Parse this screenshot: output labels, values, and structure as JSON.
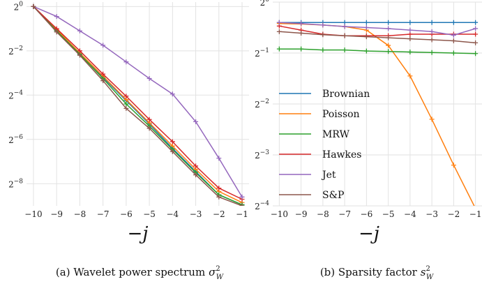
{
  "chart_data": [
    {
      "type": "line",
      "caption_prefix": "(a) Wavelet power spectrum",
      "caption_sym": "σ",
      "caption_sup": "2",
      "caption_sub": "W",
      "xlabel": "−j",
      "y_scale": "log2",
      "ylim_exp": [
        -9,
        0.2
      ],
      "y_tick_exps": [
        0,
        -2,
        -4,
        -6,
        -8
      ],
      "y_tick_base": "2",
      "y_tick_exp_labels": [
        "0",
        "−2",
        "−4",
        "−6",
        "−8"
      ],
      "x": [
        -10,
        -9,
        -8,
        -7,
        -6,
        -5,
        -4,
        -3,
        -2,
        -1
      ],
      "x_tick_labels": [
        "−10",
        "−9",
        "−8",
        "−7",
        "−6",
        "−5",
        "−4",
        "−3",
        "−2",
        "−1"
      ],
      "grid": true,
      "series": [
        {
          "name": "Brownian",
          "color": "#1f77b4",
          "values_exp": [
            0,
            -1.1,
            -2.15,
            -3.2,
            -4.25,
            -5.3,
            -6.4,
            -7.45,
            -8.5,
            -8.95
          ]
        },
        {
          "name": "Poisson",
          "color": "#ff7f0e",
          "values_exp": [
            0,
            -1.05,
            -2.1,
            -3.15,
            -4.2,
            -5.25,
            -6.3,
            -7.35,
            -8.35,
            -8.85
          ]
        },
        {
          "name": "MRW",
          "color": "#2ca02c",
          "values_exp": [
            0,
            -1.1,
            -2.15,
            -3.25,
            -4.4,
            -5.4,
            -6.45,
            -7.5,
            -8.5,
            -8.95
          ]
        },
        {
          "name": "Hawkes",
          "color": "#d62728",
          "values_exp": [
            0,
            -1.0,
            -2.0,
            -3.05,
            -4.05,
            -5.1,
            -6.1,
            -7.2,
            -8.2,
            -8.7
          ]
        },
        {
          "name": "Jet",
          "color": "#9467bd",
          "values_exp": [
            0,
            -0.45,
            -1.1,
            -1.75,
            -2.5,
            -3.25,
            -3.95,
            -5.2,
            -6.85,
            -8.6
          ]
        },
        {
          "name": "S&P",
          "color": "#8c564b",
          "values_exp": [
            0,
            -1.15,
            -2.2,
            -3.35,
            -4.6,
            -5.5,
            -6.55,
            -7.6,
            -8.6,
            -9.0
          ]
        }
      ]
    },
    {
      "type": "line",
      "caption_prefix": "(b) Sparsity factor",
      "caption_sym": "s",
      "caption_sup": "2",
      "caption_sub": "W",
      "xlabel": "−j",
      "y_scale": "log2",
      "ylim_exp": [
        -4,
        0
      ],
      "y_tick_exps": [
        0,
        -1,
        -2,
        -3,
        -4
      ],
      "y_tick_base": "2",
      "y_tick_exp_labels": [
        "0",
        "−1",
        "−2",
        "−3",
        "−4"
      ],
      "x": [
        -10,
        -9,
        -8,
        -7,
        -6,
        -5,
        -4,
        -3,
        -2,
        -1
      ],
      "x_tick_labels": [
        "−10",
        "−9",
        "−8",
        "−7",
        "−6",
        "−5",
        "−4",
        "−3",
        "−2",
        "−1"
      ],
      "grid": true,
      "legend_position": "center-left",
      "series": [
        {
          "name": "Brownian",
          "color": "#1f77b4",
          "values_exp": [
            -0.4,
            -0.4,
            -0.4,
            -0.4,
            -0.4,
            -0.4,
            -0.4,
            -0.4,
            -0.4,
            -0.4
          ]
        },
        {
          "name": "Poisson",
          "color": "#ff7f0e",
          "values_exp": [
            -0.42,
            -0.43,
            -0.45,
            -0.48,
            -0.55,
            -0.85,
            -1.45,
            -2.3,
            -3.2,
            -4.05
          ]
        },
        {
          "name": "MRW",
          "color": "#2ca02c",
          "values_exp": [
            -0.92,
            -0.92,
            -0.94,
            -0.94,
            -0.96,
            -0.97,
            -0.98,
            -0.99,
            -1.0,
            -1.01
          ]
        },
        {
          "name": "Hawkes",
          "color": "#d62728",
          "values_exp": [
            -0.47,
            -0.55,
            -0.63,
            -0.66,
            -0.66,
            -0.66,
            -0.63,
            -0.63,
            -0.63,
            -0.63
          ]
        },
        {
          "name": "Jet",
          "color": "#9467bd",
          "values_exp": [
            -0.4,
            -0.42,
            -0.45,
            -0.48,
            -0.5,
            -0.52,
            -0.55,
            -0.58,
            -0.65,
            -0.52
          ]
        },
        {
          "name": "S&P",
          "color": "#8c564b",
          "values_exp": [
            -0.58,
            -0.61,
            -0.64,
            -0.66,
            -0.68,
            -0.7,
            -0.72,
            -0.74,
            -0.76,
            -0.8
          ]
        }
      ]
    }
  ]
}
